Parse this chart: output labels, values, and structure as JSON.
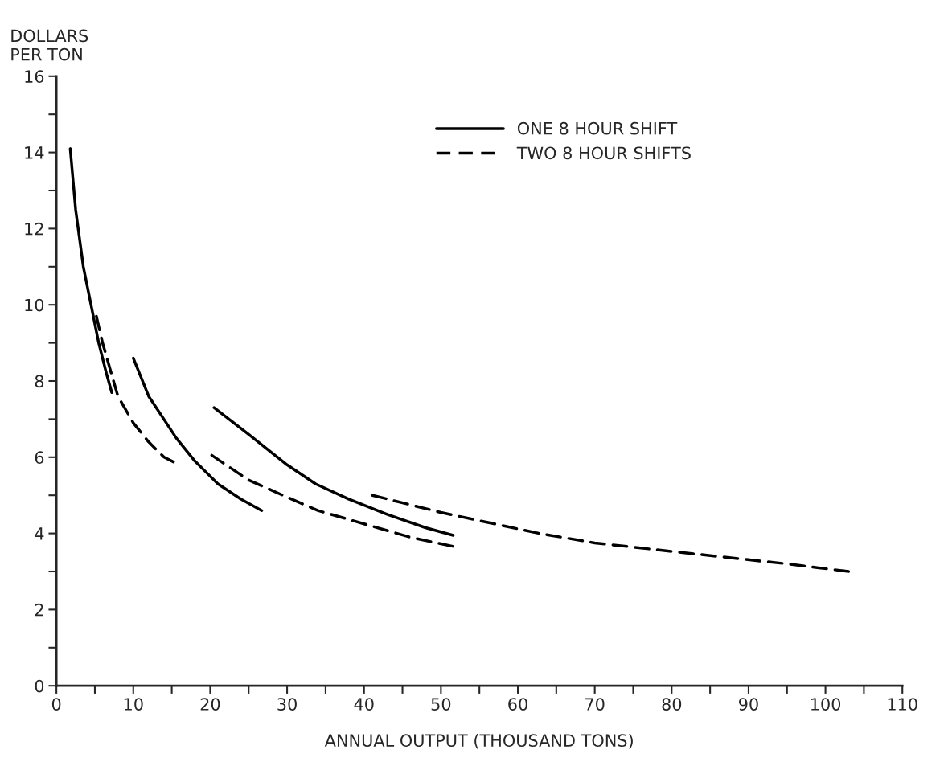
{
  "chart_data": {
    "type": "line",
    "xlabel": "ANNUAL OUTPUT (THOUSAND TONS)",
    "ylabel": "DOLLARS\nPER TON",
    "xlim": [
      0,
      110
    ],
    "ylim": [
      0,
      16
    ],
    "xticks": [
      0,
      {
        "value": 5,
        "label": null
      },
      10,
      {
        "value": 15,
        "label": null
      },
      20,
      {
        "value": 25,
        "label": null
      },
      30,
      {
        "value": 35,
        "label": null
      },
      40,
      {
        "value": 45,
        "label": null
      },
      50,
      {
        "value": 55,
        "label": null
      },
      60,
      {
        "value": 65,
        "label": null
      },
      70,
      {
        "value": 75,
        "label": null
      },
      80,
      {
        "value": 85,
        "label": null
      },
      90,
      {
        "value": 95,
        "label": null
      },
      100,
      {
        "value": 105,
        "label": null
      },
      110
    ],
    "yticks": [
      0,
      {
        "value": 1,
        "label": null
      },
      2,
      {
        "value": 3,
        "label": null
      },
      4,
      {
        "value": 5,
        "label": null
      },
      6,
      {
        "value": 7,
        "label": null
      },
      8,
      {
        "value": 9,
        "label": null
      },
      10,
      {
        "value": 11,
        "label": null
      },
      12,
      {
        "value": 13,
        "label": null
      },
      14,
      {
        "value": 15,
        "label": null
      },
      16
    ],
    "grid": false,
    "legend": "top",
    "series": [
      {
        "name": "ONE 8 HOUR SHIFT",
        "color": "#000000",
        "line_style": "solid",
        "x": [
          1.8,
          2.5,
          3.5,
          4.5,
          5.5,
          6.5,
          7.2,
          null,
          10,
          12,
          15.6,
          18,
          21,
          24,
          26.7,
          null,
          20.5,
          25,
          30,
          33.7,
          38,
          43,
          48,
          51.6
        ],
        "values": [
          14.1,
          12.5,
          11.0,
          10.0,
          9.0,
          8.2,
          7.7,
          null,
          8.6,
          7.6,
          6.5,
          5.9,
          5.3,
          4.9,
          4.6,
          null,
          7.3,
          6.6,
          5.8,
          5.3,
          4.9,
          4.5,
          4.15,
          3.95
        ]
      },
      {
        "name": "TWO 8 HOUR SHIFTS",
        "color": "#000000",
        "line_style": "dashed",
        "x": [
          5.2,
          6,
          8,
          10,
          12,
          14,
          16,
          null,
          20.2,
          25,
          30,
          34,
          40,
          46,
          51.8,
          null,
          41.1,
          50,
          62.8,
          70,
          83.5,
          95,
          103
        ],
        "values": [
          9.7,
          9.0,
          7.6,
          6.9,
          6.4,
          6.0,
          5.8,
          null,
          6.05,
          5.4,
          4.95,
          4.6,
          4.25,
          3.9,
          3.65,
          null,
          5.0,
          4.55,
          4.0,
          3.75,
          3.45,
          3.2,
          3.0
        ]
      }
    ]
  }
}
